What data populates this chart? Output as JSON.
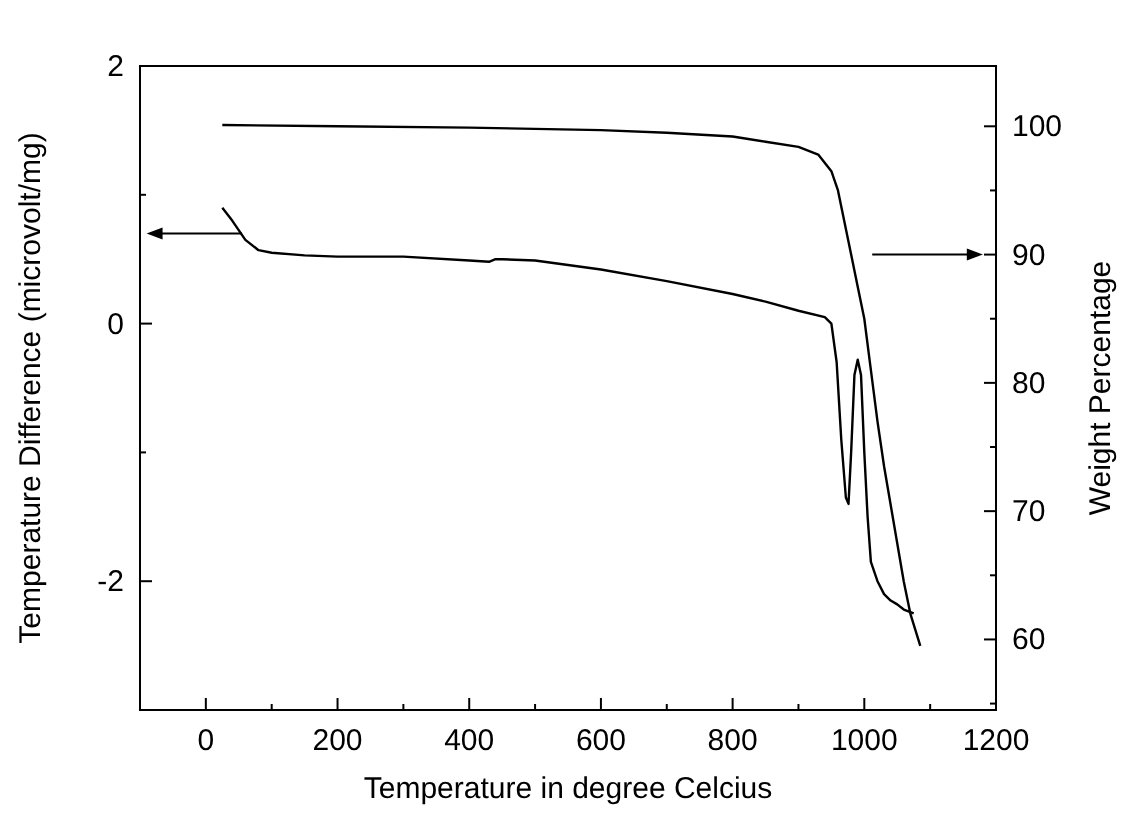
{
  "chart_data": {
    "type": "line",
    "xlabel": "Temperature in degree Celcius",
    "ylabel": "Temperature Difference (microvolt/mg)",
    "y2label": "Weight Percentage",
    "xlim": [
      -100,
      1200
    ],
    "xticks": [
      {
        "value": -100,
        "label": null
      },
      0,
      {
        "value": 100,
        "label": null
      },
      200,
      {
        "value": 300,
        "label": null
      },
      400,
      {
        "value": 500,
        "label": null
      },
      600,
      {
        "value": 700,
        "label": null
      },
      800,
      {
        "value": 900,
        "label": null
      },
      1000,
      {
        "value": 1100,
        "label": null
      },
      1200
    ],
    "ylim": [
      -3,
      2
    ],
    "yticks": [
      {
        "value": -3,
        "label": null
      },
      -2,
      {
        "value": -1,
        "label": null
      },
      0,
      {
        "value": 1,
        "label": null
      },
      2
    ],
    "y2lim": [
      54.5,
      104.7
    ],
    "y2ticks": [
      {
        "value": 55,
        "label": null
      },
      60,
      {
        "value": 65,
        "label": null
      },
      70,
      {
        "value": 75,
        "label": null
      },
      80,
      {
        "value": 85,
        "label": null
      },
      90,
      {
        "value": 95,
        "label": null
      },
      100
    ],
    "grid": false,
    "line_style": "solid",
    "series": [
      {
        "color": "#000000",
        "x": [
          25,
          40,
          60,
          80,
          100,
          150,
          200,
          300,
          400,
          430,
          440,
          450,
          500,
          600,
          700,
          800,
          850,
          900,
          940,
          950,
          958,
          965,
          972,
          976,
          980,
          985,
          990,
          995,
          1000,
          1005,
          1010,
          1020,
          1030,
          1040,
          1050,
          1060,
          1075
        ],
        "values": [
          0.9,
          0.8,
          0.65,
          0.57,
          0.55,
          0.53,
          0.52,
          0.52,
          0.49,
          0.48,
          0.5,
          0.5,
          0.49,
          0.42,
          0.33,
          0.23,
          0.17,
          0.1,
          0.05,
          0,
          -0.3,
          -0.9,
          -1.35,
          -1.4,
          -1.0,
          -0.4,
          -0.28,
          -0.4,
          -1.0,
          -1.5,
          -1.85,
          -2.0,
          -2.1,
          -2.15,
          -2.18,
          -2.22,
          -2.25
        ]
      },
      {
        "color": "#000000",
        "axis": "y2",
        "x": [
          25,
          200,
          400,
          600,
          700,
          800,
          850,
          900,
          930,
          950,
          960,
          970,
          980,
          990,
          1000,
          1010,
          1020,
          1030,
          1040,
          1050,
          1060,
          1070,
          1085
        ],
        "values": [
          100.1,
          100,
          99.9,
          99.7,
          99.5,
          99.2,
          98.8,
          98.4,
          97.8,
          96.5,
          95,
          92.5,
          90,
          87.5,
          85,
          81,
          77,
          73.5,
          70.5,
          67.5,
          64.5,
          62,
          59.5
        ]
      }
    ]
  }
}
